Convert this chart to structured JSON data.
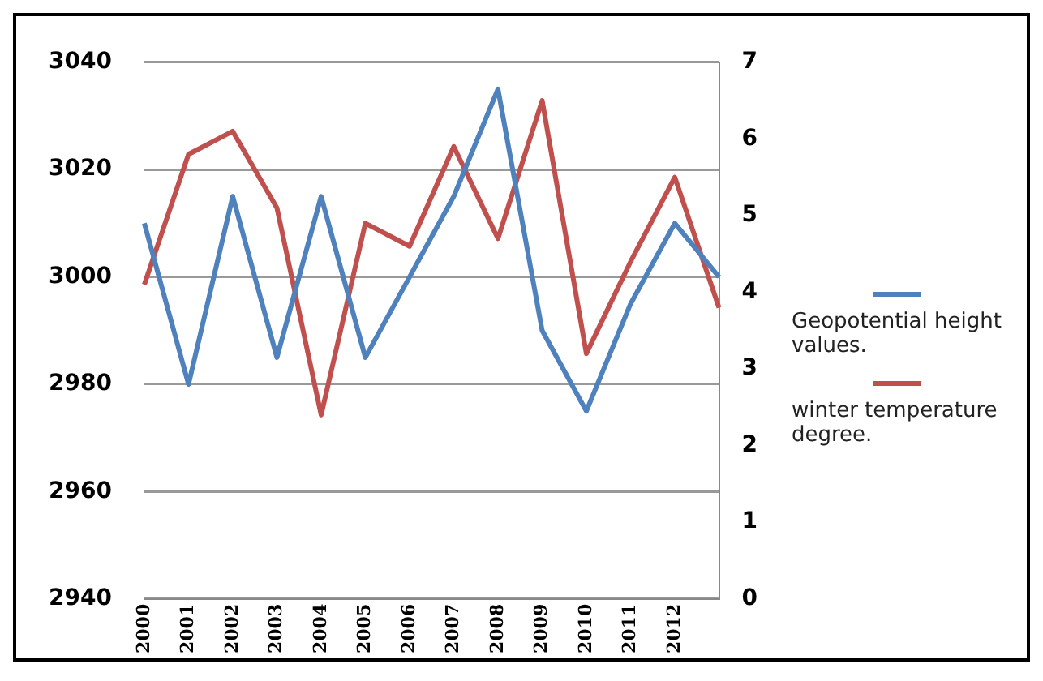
{
  "chart_data": {
    "type": "line",
    "categories": [
      "2000",
      "2001",
      "2002",
      "2003",
      "2004",
      "2005",
      "2006",
      "2007",
      "2008",
      "2009",
      "2010",
      "2011",
      "2012",
      null
    ],
    "series": [
      {
        "name": "Geopotential height values.",
        "color": "#4f81bd",
        "values": [
          3010,
          2980,
          3015,
          2985,
          3015,
          2985,
          3000,
          3015,
          3035,
          2990,
          2975,
          2995,
          3010,
          3000
        ]
      },
      {
        "name": "winter  temperature degree.",
        "color": "#c0504d",
        "axis": "y2",
        "values": [
          4.1,
          5.8,
          6.1,
          5.1,
          2.4,
          4.9,
          4.6,
          5.9,
          4.7,
          6.5,
          3.2,
          4.4,
          5.5,
          3.8
        ]
      }
    ],
    "ylim": [
      2940,
      3040
    ],
    "yticks": [
      2940,
      2960,
      2980,
      3000,
      3020,
      3040
    ],
    "y2lim": [
      0,
      7
    ],
    "y2ticks": [
      0,
      1,
      2,
      3,
      4,
      5,
      6,
      7
    ],
    "grid": "y",
    "legend": "right",
    "marker": "none"
  }
}
